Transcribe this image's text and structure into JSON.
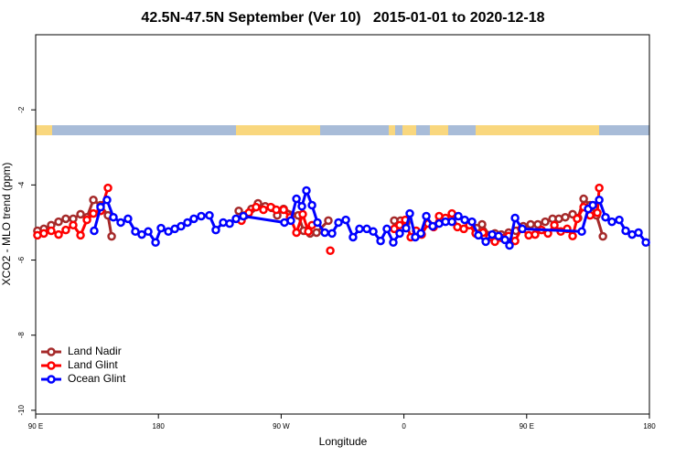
{
  "chart_data": {
    "type": "line",
    "title": "42.5N-47.5N September (Ver 10)   2015-01-01 to 2020-12-18",
    "x_label": "Longitude",
    "y_label": "XCO2 - MLO trend (ppm)",
    "xlim": [
      90,
      540
    ],
    "ylim": [
      -10.1,
      0
    ],
    "xticks": [
      {
        "value": 90,
        "label": "90 E"
      },
      180,
      {
        "value": 270,
        "label": "90 W"
      },
      {
        "value": 360,
        "label": "0"
      },
      {
        "value": 450,
        "label": "90 E"
      },
      {
        "value": 540,
        "label": "180"
      }
    ],
    "yticks": [
      -10,
      -8,
      -6,
      -4,
      -2
    ],
    "legend": "bottom-left",
    "series": [
      {
        "name": "Land Nadir",
        "color": "#a52a2a",
        "x": [
          91.3,
          96,
          101.4,
          106.8,
          112.1,
          117.5,
          122.9,
          127.6,
          132.3,
          137.6,
          143,
          145.7,
          null,
          238.9,
          243.6,
          248.3,
          253,
          258.3,
          263,
          267.1,
          271.8,
          282.5,
          286.5,
          291.2,
          295.9,
          304.6,
          null,
          352.9,
          357.6,
          361.6,
          null,
          413.3,
          417.3,
          422.7,
          426.7,
          431.4,
          436.8,
          442.1,
          447.5,
          452.9,
          458.2,
          463.6,
          469,
          473.6,
          478.3,
          483.7,
          487.7,
          491.8,
          496.5,
          501.2,
          505.9
        ],
        "values": [
          -5.22,
          -5.17,
          -5.07,
          -4.98,
          -4.9,
          -4.9,
          -4.78,
          -4.86,
          -4.4,
          -4.54,
          -4.81,
          -5.37,
          null,
          -4.69,
          -4.81,
          -4.64,
          -4.49,
          -4.57,
          -4.61,
          -4.81,
          -4.64,
          -4.81,
          -5.22,
          -5.29,
          -5.27,
          -4.95,
          null,
          -4.95,
          -4.95,
          -5.0,
          null,
          -5.15,
          -5.05,
          -5.34,
          -5.29,
          -5.32,
          -5.27,
          -5.22,
          -5.1,
          -5.05,
          -5.05,
          -4.98,
          -4.9,
          -4.9,
          -4.86,
          -4.78,
          -4.88,
          -4.37,
          -4.54,
          -4.81,
          -5.37
        ]
      },
      {
        "name": "Land Glint",
        "color": "#ff0000",
        "x": [
          91.3,
          96,
          101.4,
          106.8,
          112.1,
          117.5,
          122.9,
          127.6,
          132.3,
          137.6,
          143,
          null,
          240.9,
          246.3,
          251.6,
          257,
          262.4,
          266.4,
          271.8,
          276.5,
          281.2,
          285.8,
          289.9,
          292.6,
          null,
          306,
          null,
          352.9,
          356.9,
          361,
          365,
          369,
          373,
          377.7,
          381.8,
          385.8,
          390.5,
          395.2,
          399.2,
          403.9,
          408,
          412.6,
          418,
          422.7,
          426.7,
          431.4,
          436.8,
          441.5,
          446.1,
          451.5,
          456.2,
          460.9,
          465.6,
          470.3,
          475,
          479.7,
          483.7,
          487,
          491.8,
          496.5,
          501.8,
          503.2
        ],
        "values": [
          -5.34,
          -5.29,
          -5.22,
          -5.32,
          -5.2,
          -5.07,
          -5.34,
          -4.93,
          -4.76,
          -4.69,
          -4.08,
          null,
          -4.95,
          -4.74,
          -4.59,
          -4.66,
          -4.59,
          -4.66,
          -4.66,
          -4.86,
          -5.27,
          -4.78,
          -5.24,
          -5.07,
          null,
          -5.75,
          null,
          -5.17,
          -5.07,
          -4.93,
          -5.39,
          -5.22,
          -5.32,
          -5.03,
          -5.12,
          -4.83,
          -4.88,
          -4.76,
          -5.12,
          -5.17,
          -5.07,
          -5.29,
          -5.27,
          -5.39,
          -5.51,
          -5.41,
          -5.36,
          -5.49,
          -5.17,
          -5.34,
          -5.32,
          -5.2,
          -5.29,
          -5.07,
          -5.24,
          -5.17,
          -5.36,
          -4.9,
          -4.59,
          -4.81,
          -4.74,
          -4.08
        ]
      },
      {
        "name": "Ocean Glint",
        "color": "#0000ff",
        "x": [
          132.9,
          137.6,
          142.3,
          147,
          152.4,
          157.7,
          163.1,
          167.8,
          172.5,
          177.9,
          181.9,
          187.3,
          192,
          196.6,
          201.3,
          206,
          211.4,
          217.4,
          222.1,
          227.5,
          232.2,
          236.9,
          242.3,
          272.4,
          277.1,
          281.2,
          285.2,
          288.5,
          292.6,
          296.6,
          302,
          307.3,
          312,
          317.4,
          322.7,
          327.4,
          332.8,
          337.5,
          342.9,
          347.5,
          352.2,
          356.9,
          361.6,
          364.3,
          368.3,
          372.4,
          376.4,
          381.1,
          385.8,
          390.5,
          395.2,
          399.9,
          404.6,
          409.9,
          414.6,
          420,
          424.7,
          429.4,
          434.1,
          437.4,
          441.5,
          446.8,
          490.4,
          495.1,
          498.5,
          503.2,
          507.8,
          512.5,
          517.9,
          522.6,
          527.3,
          532,
          537.4
        ],
        "values": [
          -5.22,
          -4.59,
          -4.4,
          -4.86,
          -5.0,
          -4.9,
          -5.24,
          -5.32,
          -5.24,
          -5.53,
          -5.15,
          -5.24,
          -5.17,
          -5.1,
          -5.0,
          -4.9,
          -4.83,
          -4.81,
          -5.2,
          -5.0,
          -5.03,
          -4.9,
          -4.83,
          -5.0,
          -4.95,
          -4.37,
          -4.57,
          -4.15,
          -4.54,
          -5.0,
          -5.27,
          -5.29,
          -5.0,
          -4.93,
          -5.39,
          -5.17,
          -5.17,
          -5.24,
          -5.49,
          -5.17,
          -5.53,
          -5.29,
          -5.15,
          -4.76,
          -5.39,
          -5.29,
          -4.83,
          -5.1,
          -5.03,
          -4.98,
          -4.98,
          -4.83,
          -4.93,
          -4.98,
          -5.34,
          -5.51,
          -5.32,
          -5.36,
          -5.46,
          -5.61,
          -4.88,
          -5.17,
          -5.24,
          -4.64,
          -4.54,
          -4.4,
          -4.86,
          -4.98,
          -4.93,
          -5.22,
          -5.32,
          -5.27,
          -5.53
        ]
      }
    ]
  }
}
